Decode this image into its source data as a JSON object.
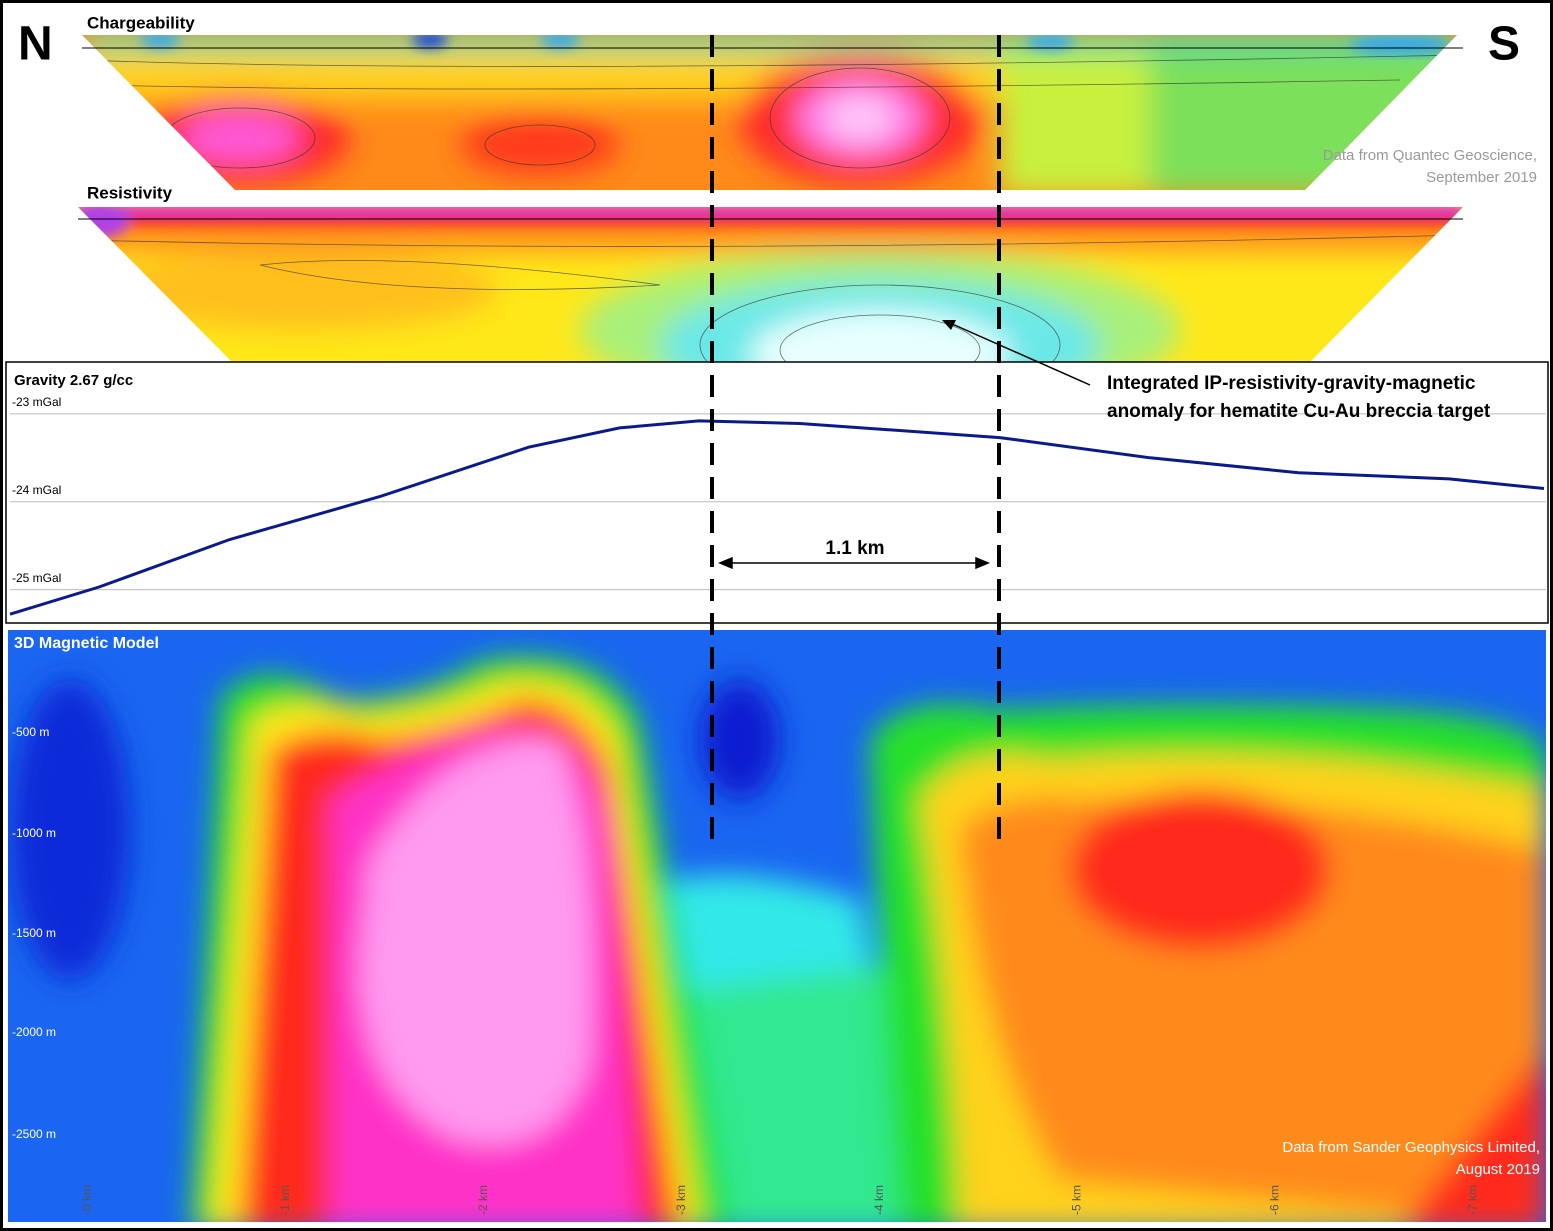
{
  "header": {
    "north": "N",
    "south": "S"
  },
  "chargeability": {
    "title": "Chargeability",
    "credit": [
      "Data from Quantec Geoscience,",
      "September 2019"
    ]
  },
  "resistivity": {
    "title": "Resistivity"
  },
  "annotation": [
    "Integrated IP-resistivity-gravity-magnetic",
    "anomaly for hematite Cu-Au breccia target"
  ],
  "scale_label": "1.1 km",
  "chart_data": {
    "type": "line",
    "title": "Gravity 2.67 g/cc",
    "x": [
      -0.39,
      0.06,
      0.72,
      1.48,
      2.23,
      2.69,
      3.09,
      3.6,
      4.61,
      5.37,
      6.12,
      6.88,
      7.36
    ],
    "series": [
      {
        "color": "#0a1a8c",
        "values": [
          -25.28,
          -24.97,
          -24.43,
          -23.94,
          -23.38,
          -23.16,
          -23.08,
          -23.11,
          -23.27,
          -23.5,
          -23.67,
          -23.74,
          -23.85
        ]
      }
    ],
    "xlim": [
      -0.4,
      7.37
    ],
    "ylim": [
      -25.38,
      -22.41
    ],
    "yticks": [
      {
        "value": -23,
        "label": "-23 mGal"
      },
      {
        "value": -24,
        "label": "-24 mGal"
      },
      {
        "value": -25,
        "label": "-25 mGal"
      }
    ],
    "grid": true
  },
  "magnetic": {
    "title": "3D Magnetic Model",
    "depth_labels": [
      "-500 m",
      "-1000 m",
      "-1500 m",
      "-2000 m",
      "-2500 m"
    ],
    "distance_labels": [
      "-0 km",
      "-1 km",
      "-2 km",
      "-3 km",
      "-4 km",
      "-5 km",
      "-6 km",
      "-7 km"
    ],
    "credit": [
      "Data from Sander Geophysics Limited,",
      "August 2019"
    ]
  }
}
